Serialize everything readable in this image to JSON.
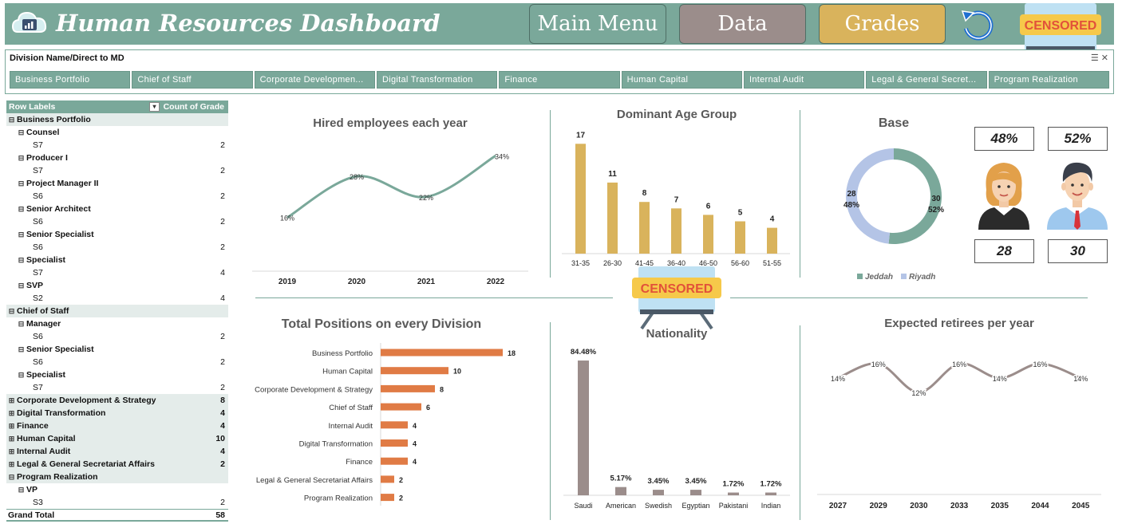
{
  "header": {
    "title": "Human Resources Dashboard",
    "nav": {
      "main_menu": "Main Menu",
      "data": "Data",
      "grades": "Grades"
    },
    "censor_label": "CENSORED"
  },
  "slicer": {
    "title": "Division Name/Direct to MD",
    "items": [
      "Business Portfolio",
      "Chief of Staff",
      "Corporate Developmen...",
      "Digital Transformation",
      "Finance",
      "Human Capital",
      "Internal Audit",
      "Legal & General Secret...",
      "Program Realization"
    ]
  },
  "pivot": {
    "header_row_labels": "Row Labels",
    "header_count": "Count of Grade",
    "grand_total_label": "Grand Total",
    "grand_total": "58",
    "rows": [
      {
        "type": "div",
        "sign": "⊟",
        "label": "Business Portfolio",
        "value": ""
      },
      {
        "type": "job",
        "sign": "⊟",
        "label": "Counsel",
        "value": ""
      },
      {
        "type": "grade",
        "label": "S7",
        "value": "2"
      },
      {
        "type": "job",
        "sign": "⊟",
        "label": "Producer I",
        "value": ""
      },
      {
        "type": "grade",
        "label": "S7",
        "value": "2"
      },
      {
        "type": "job",
        "sign": "⊟",
        "label": "Project Manager II",
        "value": ""
      },
      {
        "type": "grade",
        "label": "S6",
        "value": "2"
      },
      {
        "type": "job",
        "sign": "⊟",
        "label": "Senior Architect",
        "value": ""
      },
      {
        "type": "grade",
        "label": "S6",
        "value": "2"
      },
      {
        "type": "job",
        "sign": "⊟",
        "label": "Senior Specialist",
        "value": ""
      },
      {
        "type": "grade",
        "label": "S6",
        "value": "2"
      },
      {
        "type": "job",
        "sign": "⊟",
        "label": "Specialist",
        "value": ""
      },
      {
        "type": "grade",
        "label": "S7",
        "value": "4"
      },
      {
        "type": "job",
        "sign": "⊟",
        "label": "SVP",
        "value": ""
      },
      {
        "type": "grade",
        "label": "S2",
        "value": "4"
      },
      {
        "type": "div",
        "sign": "⊟",
        "label": "Chief of Staff",
        "value": ""
      },
      {
        "type": "job",
        "sign": "⊟",
        "label": "Manager",
        "value": ""
      },
      {
        "type": "grade",
        "label": "S6",
        "value": "2"
      },
      {
        "type": "job",
        "sign": "⊟",
        "label": "Senior Specialist",
        "value": ""
      },
      {
        "type": "grade",
        "label": "S6",
        "value": "2"
      },
      {
        "type": "job",
        "sign": "⊟",
        "label": "Specialist",
        "value": ""
      },
      {
        "type": "grade",
        "label": "S7",
        "value": "2"
      },
      {
        "type": "div",
        "sign": "⊞",
        "label": "Corporate Development & Strategy",
        "value": "8"
      },
      {
        "type": "div",
        "sign": "⊞",
        "label": "Digital Transformation",
        "value": "4"
      },
      {
        "type": "div",
        "sign": "⊞",
        "label": "Finance",
        "value": "4"
      },
      {
        "type": "div",
        "sign": "⊞",
        "label": "Human Capital",
        "value": "10"
      },
      {
        "type": "div",
        "sign": "⊞",
        "label": "Internal Audit",
        "value": "4"
      },
      {
        "type": "div",
        "sign": "⊞",
        "label": "Legal & General Secretariat Affairs",
        "value": "2"
      },
      {
        "type": "div",
        "sign": "⊟",
        "label": "Program Realization",
        "value": ""
      },
      {
        "type": "job",
        "sign": "⊟",
        "label": "VP",
        "value": ""
      },
      {
        "type": "grade",
        "label": "S3",
        "value": "2"
      }
    ]
  },
  "base": {
    "female_pct": "48%",
    "male_pct": "52%",
    "female_count": "28",
    "male_count": "30"
  },
  "colors": {
    "teal": "#7aa89a",
    "gold": "#d9b35c",
    "orange": "#e07b45",
    "taupe": "#9b8d8b",
    "lavender": "#b4c4e6"
  },
  "chart_data": [
    {
      "type": "line",
      "title": "Hired employees each year",
      "categories": [
        "2019",
        "2020",
        "2021",
        "2022"
      ],
      "values": [
        16,
        28,
        22,
        34
      ],
      "labels": [
        "16%",
        "28%",
        "22%",
        "34%"
      ],
      "color": "#7aa89a"
    },
    {
      "type": "bar",
      "title": "Dominant Age Group",
      "categories": [
        "31-35",
        "26-30",
        "41-45",
        "36-40",
        "46-50",
        "56-60",
        "51-55"
      ],
      "values": [
        17,
        11,
        8,
        7,
        6,
        5,
        4
      ],
      "color": "#d9b35c"
    },
    {
      "type": "pie",
      "title": "Base",
      "categories": [
        "Jeddah",
        "Riyadh"
      ],
      "values": [
        30,
        28
      ],
      "pct_labels": [
        "52%",
        "48%"
      ],
      "colors": [
        "#7aa89a",
        "#b4c4e6"
      ],
      "legend": "bottom"
    },
    {
      "type": "bar",
      "orientation": "horizontal",
      "title": "Total Positions on every Division",
      "categories": [
        "Business Portfolio",
        "Human Capital",
        "Corporate Development & Strategy",
        "Chief of Staff",
        "Internal Audit",
        "Digital Transformation",
        "Finance",
        "Legal & General Secretariat Affairs",
        "Program Realization"
      ],
      "values": [
        18,
        10,
        8,
        6,
        4,
        4,
        4,
        2,
        2
      ],
      "color": "#e07b45"
    },
    {
      "type": "bar",
      "title": "Nationality",
      "categories": [
        "Saudi",
        "American",
        "Swedish",
        "Egyptian",
        "Pakistani",
        "Indian"
      ],
      "values": [
        84.48,
        5.17,
        3.45,
        3.45,
        1.72,
        1.72
      ],
      "labels": [
        "84.48%",
        "5.17%",
        "3.45%",
        "3.45%",
        "1.72%",
        "1.72%"
      ],
      "color": "#9b8d8b"
    },
    {
      "type": "line",
      "title": "Expected retirees per year",
      "categories": [
        "2027",
        "2029",
        "2030",
        "2033",
        "2035",
        "2044",
        "2045"
      ],
      "values": [
        14,
        16,
        12,
        16,
        14,
        16,
        14
      ],
      "labels": [
        "14%",
        "16%",
        "12%",
        "16%",
        "14%",
        "16%",
        "14%"
      ],
      "color": "#9b8d8b"
    }
  ]
}
